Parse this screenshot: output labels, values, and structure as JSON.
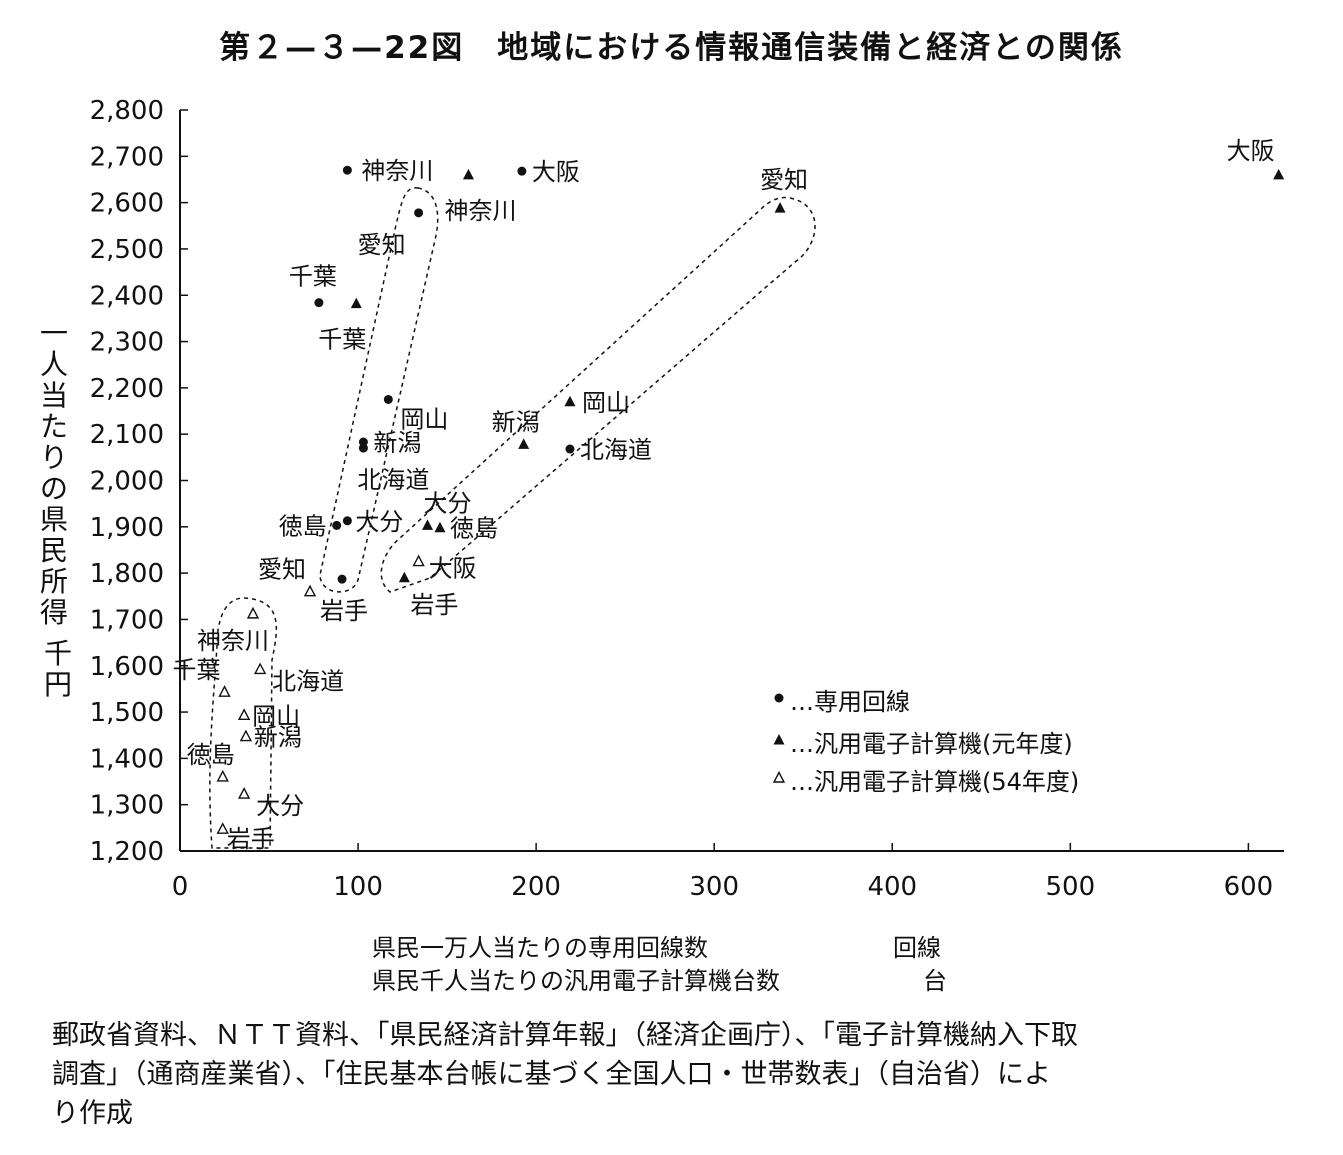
{
  "title": "第２—３—22図　地域における情報通信装備と経済との関係",
  "y_axis_label": "一人当たりの県民所得",
  "y_axis_unit": "千円",
  "x_axis_label_1": "県民一万人当たりの専用回線数",
  "x_axis_unit_1": "回線",
  "x_axis_label_2": "県民千人当たりの汎用電子計算機台数",
  "x_axis_unit_2": "台",
  "legend": [
    {
      "marker": "filled-circle",
      "dots": "…",
      "label": "専用回線"
    },
    {
      "marker": "filled-triangle",
      "dots": "…",
      "label": "汎用電子計算機(元年度)"
    },
    {
      "marker": "open-triangle",
      "dots": "…",
      "label": "汎用電子計算機(54年度)"
    }
  ],
  "source_lines": [
    "郵政省資料、ＮＴＴ資料、「県民経済計算年報」（経済企画庁）、「電子計算機納入下取",
    "調査」（通商産業省）、「住民基本台帳に基づく全国人口・世帯数表」（自治省）によ",
    "り作成"
  ],
  "chart_data": {
    "type": "scatter",
    "xlim": [
      0,
      620
    ],
    "ylim": [
      1200,
      2800
    ],
    "x_ticks": [
      0,
      100,
      200,
      300,
      400,
      500,
      600
    ],
    "y_ticks": [
      1200,
      1300,
      1400,
      1500,
      1600,
      1700,
      1800,
      1900,
      2000,
      2100,
      2200,
      2300,
      2400,
      2500,
      2600,
      2700,
      2800
    ],
    "y_tick_labels": [
      "1,200",
      "1,300",
      "1,400",
      "1,500",
      "1,600",
      "1,700",
      "1,800",
      "1,900",
      "2,000",
      "2,100",
      "2,200",
      "2,300",
      "2,400",
      "2,500",
      "2,600",
      "2,700",
      "2,800"
    ],
    "grid": false,
    "series": [
      {
        "name": "専用回線",
        "marker": "filled-circle",
        "points": [
          {
            "label": "神奈川",
            "x": 94,
            "y": 2670
          },
          {
            "label": "大阪",
            "x": 192,
            "y": 2668
          },
          {
            "label": "愛知",
            "x": 134,
            "y": 2578
          },
          {
            "label": "千葉",
            "x": 78,
            "y": 2384
          },
          {
            "label": "岡山",
            "x": 117,
            "y": 2175
          },
          {
            "label": "新潟",
            "x": 103,
            "y": 2083
          },
          {
            "label": "北海道",
            "x": 103,
            "y": 2070
          },
          {
            "label": "北海道",
            "x": 219,
            "y": 2068
          },
          {
            "label": "徳島",
            "x": 88,
            "y": 1903
          },
          {
            "label": "大分",
            "x": 94,
            "y": 1913
          },
          {
            "label": "岩手",
            "x": 91,
            "y": 1787
          }
        ]
      },
      {
        "name": "汎用電子計算機(元年度)",
        "marker": "filled-triangle",
        "points": [
          {
            "label": "大阪",
            "x": 617,
            "y": 2660
          },
          {
            "label": "神奈川",
            "x": 162,
            "y": 2660
          },
          {
            "label": "愛知",
            "x": 337,
            "y": 2588
          },
          {
            "label": "千葉",
            "x": 99,
            "y": 2382
          },
          {
            "label": "岡山",
            "x": 219,
            "y": 2170
          },
          {
            "label": "新潟",
            "x": 193,
            "y": 2078
          },
          {
            "label": "大分",
            "x": 139,
            "y": 1903
          },
          {
            "label": "徳島",
            "x": 146,
            "y": 1898
          },
          {
            "label": "岩手",
            "x": 126,
            "y": 1790
          }
        ]
      },
      {
        "name": "汎用電子計算機(54年度)",
        "marker": "open-triangle",
        "points": [
          {
            "label": "大阪",
            "x": 134,
            "y": 1825
          },
          {
            "label": "愛知",
            "x": 73,
            "y": 1760
          },
          {
            "label": "神奈川",
            "x": 41,
            "y": 1712
          },
          {
            "label": "北海道",
            "x": 45,
            "y": 1592
          },
          {
            "label": "千葉",
            "x": 25,
            "y": 1543
          },
          {
            "label": "岡山",
            "x": 36,
            "y": 1493
          },
          {
            "label": "新潟",
            "x": 37,
            "y": 1447
          },
          {
            "label": "徳島",
            "x": 24,
            "y": 1360
          },
          {
            "label": "大分",
            "x": 36,
            "y": 1323
          },
          {
            "label": "岩手",
            "x": 24,
            "y": 1247
          }
        ]
      }
    ]
  }
}
